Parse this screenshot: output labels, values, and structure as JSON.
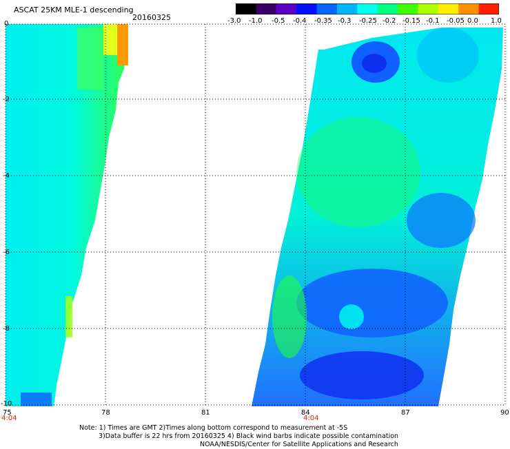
{
  "header": {
    "title": "ASCAT 25KM MLE-1 descending",
    "date": "20160325"
  },
  "colorbar": {
    "ticks": [
      "-3.0",
      "-1.0",
      "-0.5",
      "-0.4",
      "-0.35",
      "-0.3",
      "-0.25",
      "-0.2",
      "-0.15",
      "-0.1",
      "-0.05",
      "0.0",
      "1.0"
    ],
    "colors": [
      "#000000",
      "#3a0066",
      "#5a00c8",
      "#0010ff",
      "#0066ff",
      "#00b4ff",
      "#00ffee",
      "#00ff80",
      "#40ff00",
      "#b0ff00",
      "#ffee00",
      "#ff9000",
      "#ff2000"
    ]
  },
  "map": {
    "x_ticks": [
      "75",
      "78",
      "81",
      "84",
      "87",
      "90"
    ],
    "y_ticks": [
      "0",
      "-2",
      "-4",
      "-6",
      "-8",
      "-10"
    ],
    "time_labels": [
      "4:04",
      "4:04"
    ],
    "swath_colors": {
      "cyan": "#00f0f0",
      "green": "#20ff40",
      "blue": "#1060ff",
      "dark_blue": "#1030f0",
      "orange": "#ff9a00",
      "yellow": "#e0ff20"
    }
  },
  "notes": {
    "line1": "Note: 1) Times are GMT 2)Times along bottom correspond to measurement at -5S",
    "line2": "3)Data buffer is 22 hrs from 20160325 4) Black wind barbs indicate possible contamination",
    "line3": "NOAA/NESDIS/Center for Satellite Applications and Research"
  }
}
